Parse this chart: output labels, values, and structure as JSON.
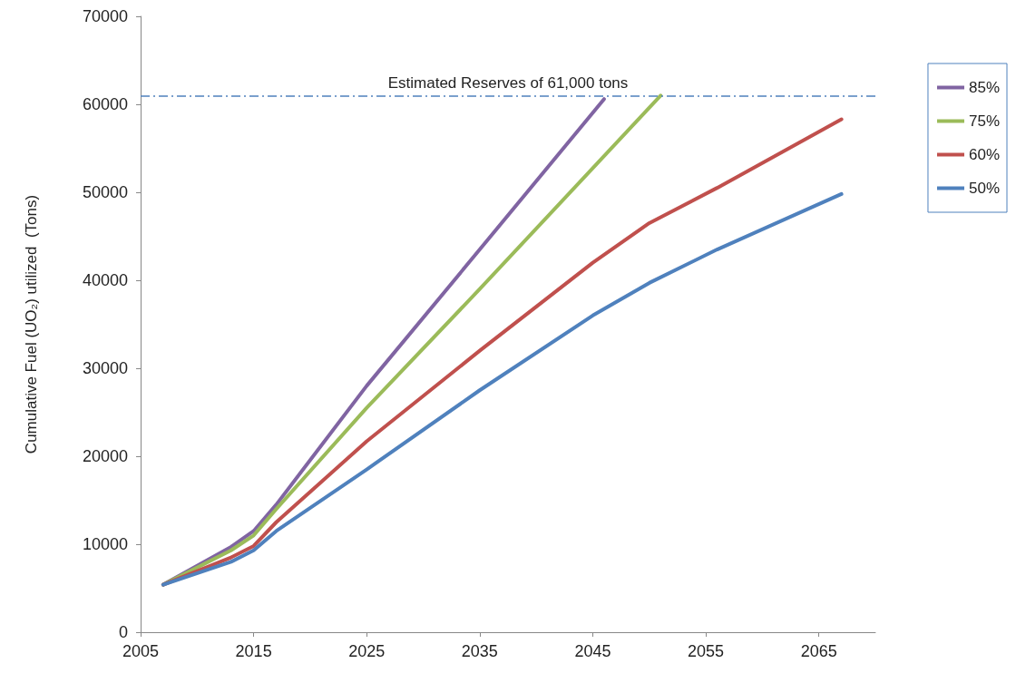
{
  "chart_data": {
    "type": "line",
    "ylabel": "Cumulative Fuel (UO₂) utilized  (Tons)",
    "xlim": [
      2005,
      2070
    ],
    "xticks": [
      2005,
      2015,
      2025,
      2035,
      2045,
      2055,
      2065
    ],
    "ylim": [
      0,
      70000
    ],
    "yticks": [
      0,
      10000,
      20000,
      30000,
      40000,
      50000,
      60000,
      70000
    ],
    "grid": false,
    "legend": "right",
    "marker": "none",
    "line_style": "solid",
    "series": [
      {
        "name": "85%",
        "color": "#8064a2",
        "x": [
          2007,
          2013,
          2015,
          2017,
          2025,
          2035,
          2046
        ],
        "values": [
          5400,
          9700,
          11500,
          14500,
          28000,
          43500,
          60600
        ]
      },
      {
        "name": "75%",
        "color": "#9bbb59",
        "x": [
          2007,
          2013,
          2015,
          2017,
          2025,
          2035,
          2051
        ],
        "values": [
          5400,
          9300,
          11000,
          14000,
          25500,
          39000,
          61000
        ]
      },
      {
        "name": "60%",
        "color": "#c0504d",
        "x": [
          2007,
          2013,
          2015,
          2017,
          2025,
          2035,
          2045,
          2050,
          2056,
          2067
        ],
        "values": [
          5400,
          8500,
          9800,
          12500,
          21700,
          32000,
          42000,
          46500,
          50500,
          58300
        ]
      },
      {
        "name": "50%",
        "color": "#4f81bd",
        "x": [
          2007,
          2013,
          2015,
          2017,
          2025,
          2035,
          2045,
          2050,
          2056,
          2067
        ],
        "values": [
          5400,
          8000,
          9300,
          11500,
          18500,
          27500,
          36000,
          39700,
          43500,
          49800
        ]
      }
    ],
    "ref_lines": [
      {
        "axis": "y",
        "value": 61000,
        "label": "Estimated Reserves of 61,000 tons",
        "color": "#4f81bd",
        "line_style": "dashed"
      }
    ]
  }
}
